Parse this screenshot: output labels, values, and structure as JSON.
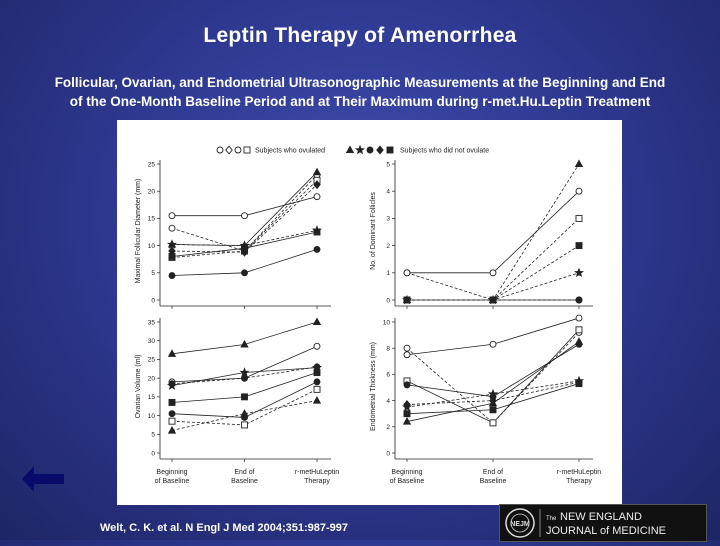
{
  "slide": {
    "title": "Leptin Therapy of Amenorrhea",
    "subtitle_line1": "Follicular, Ovarian, and Endometrial Ultrasonographic Measurements at the Beginning and End",
    "subtitle_line2": "of the One-Month Baseline Period and at Their Maximum during r-met.Hu.Leptin Treatment",
    "citation": "Welt, C. K. et al. N Engl J Med 2004;351:987-997",
    "back_icon": "back-arrow-icon"
  },
  "logo": {
    "small_the": "The",
    "line1": "NEW ENGLAND",
    "line2": "JOURNAL of MEDICINE",
    "seal_text": "NEJM"
  },
  "legend": {
    "ovulated_label": "Subjects who ovulated",
    "not_ovulated_label": "Subjects who did not ovulate"
  },
  "colors": {
    "background": "#2f3a93",
    "panel": "#ffffff",
    "ink": "#222222"
  },
  "chart_data": [
    {
      "type": "line",
      "panel": "top-left",
      "ylabel": "Maximal Follicular Diameter (mm)",
      "x": [
        "Beginning of Baseline",
        "End of Baseline",
        "r-metHuLeptin Therapy"
      ],
      "ylim": [
        0,
        25
      ],
      "yticks": [
        0,
        5,
        10,
        15,
        20,
        25
      ],
      "series": [
        {
          "marker": "circle-open",
          "style": "dashed",
          "values": [
            13.2,
            9.0,
            23.0
          ]
        },
        {
          "marker": "circle-open",
          "style": "solid",
          "values": [
            15.5,
            15.5,
            19.0
          ]
        },
        {
          "marker": "square-open",
          "style": "dashed",
          "values": [
            7.8,
            9.0,
            22.0
          ]
        },
        {
          "marker": "triangle-filled",
          "style": "solid",
          "values": [
            10.2,
            10.0,
            23.5
          ]
        },
        {
          "marker": "star-filled",
          "style": "dashed",
          "values": [
            10.2,
            10.0,
            12.8
          ]
        },
        {
          "marker": "circle-filled",
          "style": "solid",
          "values": [
            4.5,
            5.0,
            9.3
          ]
        },
        {
          "marker": "diamond-filled",
          "style": "dashed",
          "values": [
            9.0,
            8.8,
            21.2
          ]
        },
        {
          "marker": "square-filled",
          "style": "solid",
          "values": [
            8.0,
            9.5,
            12.5
          ]
        }
      ]
    },
    {
      "type": "line",
      "panel": "top-right",
      "ylabel": "No. of Dominant Follicles",
      "x": [
        "Beginning of Baseline",
        "End of Baseline",
        "r-metHuLeptin Therapy"
      ],
      "ylim": [
        0,
        5
      ],
      "yticks": [
        0,
        1,
        2,
        3,
        4,
        5
      ],
      "series": [
        {
          "marker": "circle-open",
          "style": "solid",
          "values": [
            1,
            1,
            4
          ]
        },
        {
          "marker": "circle-open",
          "style": "dashed",
          "values": [
            1,
            0,
            0
          ]
        },
        {
          "marker": "square-open",
          "style": "dashed",
          "values": [
            0,
            0,
            3
          ]
        },
        {
          "marker": "triangle-filled",
          "style": "dashed",
          "values": [
            0,
            0,
            5
          ]
        },
        {
          "marker": "square-filled",
          "style": "dashed",
          "values": [
            0,
            0,
            2
          ]
        },
        {
          "marker": "star-filled",
          "style": "dashed",
          "values": [
            0,
            0,
            1
          ]
        },
        {
          "marker": "circle-filled",
          "style": "solid",
          "values": [
            0,
            0,
            0
          ]
        }
      ]
    },
    {
      "type": "line",
      "panel": "bottom-left",
      "ylabel": "Ovarian Volume (ml)",
      "xlabel_ticks": [
        "Beginning of Baseline",
        "End of Baseline",
        "r-metHuLeptin Therapy"
      ],
      "x": [
        "Beginning of Baseline",
        "End of Baseline",
        "r-metHuLeptin Therapy"
      ],
      "ylim": [
        0,
        35
      ],
      "yticks": [
        0,
        5,
        10,
        15,
        20,
        25,
        30,
        35
      ],
      "series": [
        {
          "marker": "triangle-filled",
          "style": "solid",
          "values": [
            26.5,
            29.0,
            35.0
          ]
        },
        {
          "marker": "circle-open",
          "style": "solid",
          "values": [
            19.0,
            20.0,
            28.5
          ]
        },
        {
          "marker": "star-filled",
          "style": "solid",
          "values": [
            18.0,
            21.5,
            22.8
          ]
        },
        {
          "marker": "circle-filled",
          "style": "dashed",
          "values": [
            18.5,
            20.0,
            23.0
          ]
        },
        {
          "marker": "square-filled",
          "style": "solid",
          "values": [
            13.5,
            15.0,
            21.5
          ]
        },
        {
          "marker": "circle-filled",
          "style": "solid",
          "values": [
            10.5,
            9.5,
            19.0
          ]
        },
        {
          "marker": "square-open",
          "style": "dashed",
          "values": [
            8.5,
            7.5,
            17.0
          ]
        },
        {
          "marker": "triangle-filled",
          "style": "dashed",
          "values": [
            6.0,
            10.5,
            14.0
          ]
        }
      ]
    },
    {
      "type": "line",
      "panel": "bottom-right",
      "ylabel": "Endometrial Thickness (mm)",
      "x": [
        "Beginning of Baseline",
        "End of Baseline",
        "r-metHuLeptin Therapy"
      ],
      "ylim": [
        0,
        10
      ],
      "yticks": [
        0,
        2,
        4,
        6,
        8,
        10
      ],
      "series": [
        {
          "marker": "circle-open",
          "style": "solid",
          "values": [
            7.5,
            8.3,
            10.3
          ]
        },
        {
          "marker": "circle-open",
          "style": "dashed",
          "values": [
            8.0,
            2.3,
            9.2
          ]
        },
        {
          "marker": "square-open",
          "style": "solid",
          "values": [
            5.5,
            2.3,
            9.4
          ]
        },
        {
          "marker": "circle-filled",
          "style": "solid",
          "values": [
            5.2,
            4.3,
            8.3
          ]
        },
        {
          "marker": "star-filled",
          "style": "dashed",
          "values": [
            3.5,
            4.5,
            5.5
          ]
        },
        {
          "marker": "triangle-filled",
          "style": "solid",
          "values": [
            2.4,
            3.8,
            8.5
          ]
        },
        {
          "marker": "square-filled",
          "style": "solid",
          "values": [
            3.0,
            3.3,
            5.3
          ]
        },
        {
          "marker": "diamond-filled",
          "style": "dashed",
          "values": [
            3.7,
            4.0,
            5.4
          ]
        }
      ]
    }
  ]
}
